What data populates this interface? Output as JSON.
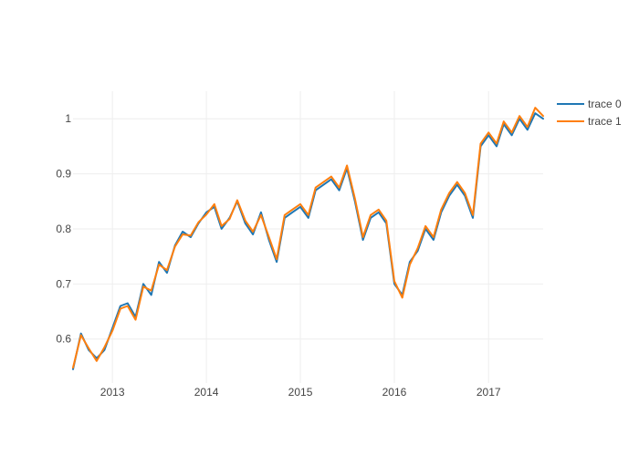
{
  "chart_data": {
    "type": "line",
    "title": "",
    "xlabel": "",
    "ylabel": "",
    "grid": true,
    "legend_position": "top-right",
    "x_axis": {
      "type": "date",
      "range": [
        "2012-08-01",
        "2017-08-01"
      ],
      "tick_values": [
        "2013-01-01",
        "2014-01-01",
        "2015-01-01",
        "2016-01-01",
        "2017-01-01"
      ],
      "tick_labels": [
        "2013",
        "2014",
        "2015",
        "2016",
        "2017"
      ]
    },
    "y_axis": {
      "range": [
        0.52,
        1.05
      ],
      "tick_values": [
        0.6,
        0.7,
        0.8,
        0.9,
        1.0
      ],
      "tick_labels": [
        "0.6",
        "0.7",
        "0.8",
        "0.9",
        "1"
      ]
    },
    "series": [
      {
        "name": "trace 0",
        "color": "#1f77b4",
        "x": [
          "2012-08-01",
          "2012-09-01",
          "2012-10-01",
          "2012-11-01",
          "2012-12-01",
          "2013-01-01",
          "2013-02-01",
          "2013-03-01",
          "2013-04-01",
          "2013-05-01",
          "2013-06-01",
          "2013-07-01",
          "2013-08-01",
          "2013-09-01",
          "2013-10-01",
          "2013-11-01",
          "2013-12-01",
          "2014-01-01",
          "2014-02-01",
          "2014-03-01",
          "2014-04-01",
          "2014-05-01",
          "2014-06-01",
          "2014-07-01",
          "2014-08-01",
          "2014-09-01",
          "2014-10-01",
          "2014-11-01",
          "2014-12-01",
          "2015-01-01",
          "2015-02-01",
          "2015-03-01",
          "2015-04-01",
          "2015-05-01",
          "2015-06-01",
          "2015-07-01",
          "2015-08-01",
          "2015-09-01",
          "2015-10-01",
          "2015-11-01",
          "2015-12-01",
          "2016-01-01",
          "2016-02-01",
          "2016-03-01",
          "2016-04-01",
          "2016-05-01",
          "2016-06-01",
          "2016-07-01",
          "2016-08-01",
          "2016-09-01",
          "2016-10-01",
          "2016-11-01",
          "2016-12-01",
          "2017-01-01",
          "2017-02-01",
          "2017-03-01",
          "2017-04-01",
          "2017-05-01",
          "2017-06-01",
          "2017-07-01",
          "2017-08-01"
        ],
        "y": [
          0.545,
          0.61,
          0.58,
          0.565,
          0.58,
          0.62,
          0.66,
          0.665,
          0.64,
          0.7,
          0.68,
          0.74,
          0.72,
          0.77,
          0.795,
          0.785,
          0.81,
          0.83,
          0.84,
          0.8,
          0.82,
          0.85,
          0.81,
          0.79,
          0.83,
          0.78,
          0.74,
          0.82,
          0.83,
          0.84,
          0.82,
          0.87,
          0.88,
          0.89,
          0.87,
          0.91,
          0.85,
          0.78,
          0.82,
          0.83,
          0.81,
          0.7,
          0.68,
          0.74,
          0.76,
          0.8,
          0.78,
          0.83,
          0.86,
          0.88,
          0.86,
          0.82,
          0.95,
          0.97,
          0.95,
          0.99,
          0.97,
          1.0,
          0.98,
          1.01,
          1.0
        ]
      },
      {
        "name": "trace 1",
        "color": "#ff7f0e",
        "x": [
          "2012-08-01",
          "2012-09-01",
          "2012-10-01",
          "2012-11-01",
          "2012-12-01",
          "2013-01-01",
          "2013-02-01",
          "2013-03-01",
          "2013-04-01",
          "2013-05-01",
          "2013-06-01",
          "2013-07-01",
          "2013-08-01",
          "2013-09-01",
          "2013-10-01",
          "2013-11-01",
          "2013-12-01",
          "2014-01-01",
          "2014-02-01",
          "2014-03-01",
          "2014-04-01",
          "2014-05-01",
          "2014-06-01",
          "2014-07-01",
          "2014-08-01",
          "2014-09-01",
          "2014-10-01",
          "2014-11-01",
          "2014-12-01",
          "2015-01-01",
          "2015-02-01",
          "2015-03-01",
          "2015-04-01",
          "2015-05-01",
          "2015-06-01",
          "2015-07-01",
          "2015-08-01",
          "2015-09-01",
          "2015-10-01",
          "2015-11-01",
          "2015-12-01",
          "2016-01-01",
          "2016-02-01",
          "2016-03-01",
          "2016-04-01",
          "2016-05-01",
          "2016-06-01",
          "2016-07-01",
          "2016-08-01",
          "2016-09-01",
          "2016-10-01",
          "2016-11-01",
          "2016-12-01",
          "2017-01-01",
          "2017-02-01",
          "2017-03-01",
          "2017-04-01",
          "2017-05-01",
          "2017-06-01",
          "2017-07-01",
          "2017-08-01"
        ],
        "y": [
          0.548,
          0.607,
          0.583,
          0.56,
          0.585,
          0.615,
          0.655,
          0.66,
          0.635,
          0.695,
          0.688,
          0.735,
          0.725,
          0.768,
          0.79,
          0.788,
          0.812,
          0.826,
          0.845,
          0.805,
          0.818,
          0.852,
          0.815,
          0.795,
          0.825,
          0.785,
          0.745,
          0.825,
          0.835,
          0.845,
          0.825,
          0.875,
          0.885,
          0.895,
          0.875,
          0.915,
          0.855,
          0.785,
          0.825,
          0.835,
          0.815,
          0.705,
          0.675,
          0.735,
          0.765,
          0.805,
          0.785,
          0.835,
          0.865,
          0.885,
          0.865,
          0.825,
          0.955,
          0.975,
          0.955,
          0.995,
          0.975,
          1.005,
          0.985,
          1.02,
          1.005
        ]
      }
    ]
  }
}
